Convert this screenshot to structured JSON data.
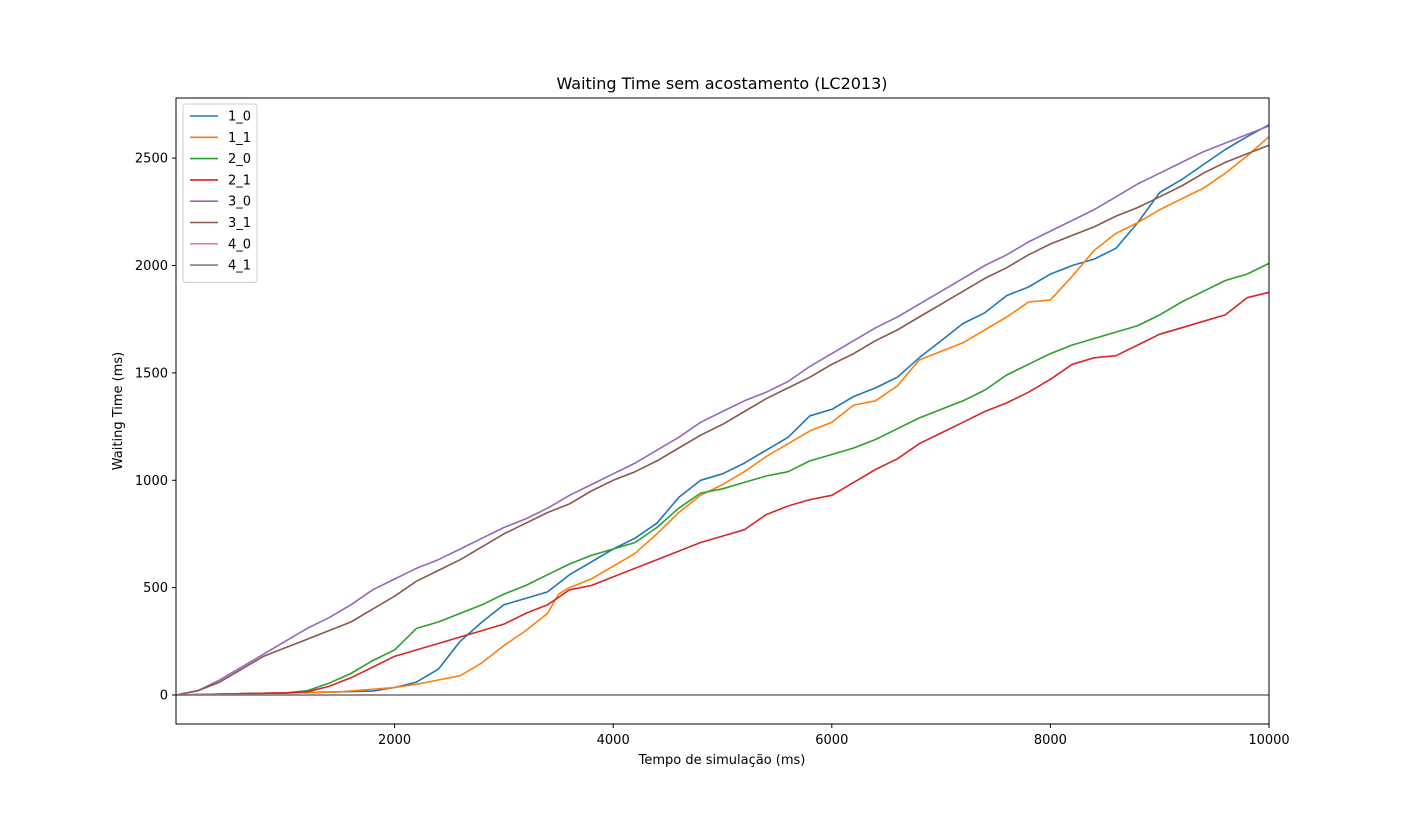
{
  "chart_data": {
    "type": "line",
    "title": "Waiting Time sem acostamento (LC2013)",
    "xlabel": "Tempo de simulação (ms)",
    "ylabel": "Waiting Time (ms)",
    "xlim": [
      0,
      10000
    ],
    "ylim": [
      -135,
      2780
    ],
    "xticks": [
      2000,
      4000,
      6000,
      8000,
      10000
    ],
    "yticks": [
      0,
      500,
      1000,
      1500,
      2000,
      2500
    ],
    "grid": false,
    "legend_position": "upper-left",
    "series": [
      {
        "name": "1_0",
        "color": "#1f77b4",
        "points": [
          [
            0,
            0
          ],
          [
            500,
            5
          ],
          [
            1000,
            10
          ],
          [
            1500,
            15
          ],
          [
            1800,
            18
          ],
          [
            2000,
            35
          ],
          [
            2200,
            60
          ],
          [
            2400,
            120
          ],
          [
            2600,
            250
          ],
          [
            2800,
            340
          ],
          [
            3000,
            420
          ],
          [
            3200,
            450
          ],
          [
            3400,
            480
          ],
          [
            3600,
            560
          ],
          [
            3800,
            620
          ],
          [
            4000,
            680
          ],
          [
            4200,
            730
          ],
          [
            4400,
            800
          ],
          [
            4600,
            920
          ],
          [
            4800,
            1000
          ],
          [
            5000,
            1030
          ],
          [
            5200,
            1080
          ],
          [
            5400,
            1140
          ],
          [
            5600,
            1200
          ],
          [
            5800,
            1300
          ],
          [
            6000,
            1330
          ],
          [
            6200,
            1390
          ],
          [
            6400,
            1430
          ],
          [
            6600,
            1480
          ],
          [
            6800,
            1570
          ],
          [
            7000,
            1650
          ],
          [
            7200,
            1730
          ],
          [
            7400,
            1780
          ],
          [
            7600,
            1860
          ],
          [
            7800,
            1900
          ],
          [
            8000,
            1960
          ],
          [
            8200,
            2000
          ],
          [
            8400,
            2030
          ],
          [
            8600,
            2080
          ],
          [
            8800,
            2200
          ],
          [
            9000,
            2340
          ],
          [
            9200,
            2400
          ],
          [
            9400,
            2470
          ],
          [
            9600,
            2540
          ],
          [
            9800,
            2600
          ],
          [
            10000,
            2655
          ]
        ]
      },
      {
        "name": "1_1",
        "color": "#ff7f0e",
        "points": [
          [
            0,
            0
          ],
          [
            500,
            5
          ],
          [
            1000,
            10
          ],
          [
            1500,
            15
          ],
          [
            2000,
            35
          ],
          [
            2200,
            50
          ],
          [
            2400,
            70
          ],
          [
            2600,
            90
          ],
          [
            2800,
            150
          ],
          [
            3000,
            230
          ],
          [
            3200,
            300
          ],
          [
            3400,
            380
          ],
          [
            3500,
            470
          ],
          [
            3600,
            500
          ],
          [
            3800,
            540
          ],
          [
            4000,
            600
          ],
          [
            4200,
            660
          ],
          [
            4400,
            750
          ],
          [
            4600,
            850
          ],
          [
            4800,
            930
          ],
          [
            5000,
            980
          ],
          [
            5200,
            1040
          ],
          [
            5400,
            1110
          ],
          [
            5600,
            1170
          ],
          [
            5800,
            1230
          ],
          [
            6000,
            1270
          ],
          [
            6200,
            1350
          ],
          [
            6400,
            1370
          ],
          [
            6600,
            1440
          ],
          [
            6800,
            1560
          ],
          [
            7000,
            1600
          ],
          [
            7200,
            1640
          ],
          [
            7400,
            1700
          ],
          [
            7600,
            1760
          ],
          [
            7800,
            1830
          ],
          [
            8000,
            1840
          ],
          [
            8200,
            1950
          ],
          [
            8400,
            2070
          ],
          [
            8600,
            2150
          ],
          [
            8800,
            2200
          ],
          [
            9000,
            2260
          ],
          [
            9200,
            2310
          ],
          [
            9400,
            2360
          ],
          [
            9600,
            2430
          ],
          [
            9800,
            2510
          ],
          [
            10000,
            2600
          ]
        ]
      },
      {
        "name": "2_0",
        "color": "#2ca02c",
        "points": [
          [
            0,
            0
          ],
          [
            500,
            5
          ],
          [
            1000,
            10
          ],
          [
            1200,
            20
          ],
          [
            1400,
            55
          ],
          [
            1600,
            100
          ],
          [
            1800,
            160
          ],
          [
            2000,
            210
          ],
          [
            2200,
            310
          ],
          [
            2400,
            340
          ],
          [
            2600,
            380
          ],
          [
            2800,
            420
          ],
          [
            3000,
            470
          ],
          [
            3200,
            510
          ],
          [
            3400,
            560
          ],
          [
            3600,
            610
          ],
          [
            3800,
            650
          ],
          [
            4000,
            680
          ],
          [
            4200,
            710
          ],
          [
            4400,
            780
          ],
          [
            4600,
            870
          ],
          [
            4800,
            940
          ],
          [
            5000,
            960
          ],
          [
            5200,
            990
          ],
          [
            5400,
            1020
          ],
          [
            5600,
            1040
          ],
          [
            5800,
            1090
          ],
          [
            6000,
            1120
          ],
          [
            6200,
            1150
          ],
          [
            6400,
            1190
          ],
          [
            6600,
            1240
          ],
          [
            6800,
            1290
          ],
          [
            7000,
            1330
          ],
          [
            7200,
            1370
          ],
          [
            7400,
            1420
          ],
          [
            7600,
            1490
          ],
          [
            7800,
            1540
          ],
          [
            8000,
            1590
          ],
          [
            8200,
            1630
          ],
          [
            8400,
            1660
          ],
          [
            8600,
            1690
          ],
          [
            8800,
            1720
          ],
          [
            9000,
            1770
          ],
          [
            9200,
            1830
          ],
          [
            9400,
            1880
          ],
          [
            9600,
            1930
          ],
          [
            9800,
            1960
          ],
          [
            10000,
            2010
          ]
        ]
      },
      {
        "name": "2_1",
        "color": "#d62728",
        "points": [
          [
            0,
            0
          ],
          [
            500,
            5
          ],
          [
            1000,
            10
          ],
          [
            1200,
            15
          ],
          [
            1400,
            40
          ],
          [
            1600,
            80
          ],
          [
            1800,
            130
          ],
          [
            2000,
            180
          ],
          [
            2200,
            210
          ],
          [
            2400,
            240
          ],
          [
            2600,
            270
          ],
          [
            2800,
            300
          ],
          [
            3000,
            330
          ],
          [
            3200,
            380
          ],
          [
            3400,
            420
          ],
          [
            3600,
            490
          ],
          [
            3800,
            510
          ],
          [
            4000,
            550
          ],
          [
            4200,
            590
          ],
          [
            4400,
            630
          ],
          [
            4600,
            670
          ],
          [
            4800,
            710
          ],
          [
            5000,
            740
          ],
          [
            5200,
            770
          ],
          [
            5400,
            840
          ],
          [
            5600,
            880
          ],
          [
            5800,
            910
          ],
          [
            6000,
            930
          ],
          [
            6200,
            990
          ],
          [
            6400,
            1050
          ],
          [
            6600,
            1100
          ],
          [
            6800,
            1170
          ],
          [
            7000,
            1220
          ],
          [
            7200,
            1270
          ],
          [
            7400,
            1320
          ],
          [
            7600,
            1360
          ],
          [
            7800,
            1410
          ],
          [
            8000,
            1470
          ],
          [
            8200,
            1540
          ],
          [
            8400,
            1570
          ],
          [
            8600,
            1580
          ],
          [
            8800,
            1630
          ],
          [
            9000,
            1680
          ],
          [
            9200,
            1710
          ],
          [
            9400,
            1740
          ],
          [
            9600,
            1770
          ],
          [
            9800,
            1850
          ],
          [
            10000,
            1875
          ]
        ]
      },
      {
        "name": "3_0",
        "color": "#9467bd",
        "points": [
          [
            0,
            0
          ],
          [
            200,
            20
          ],
          [
            400,
            70
          ],
          [
            600,
            130
          ],
          [
            800,
            190
          ],
          [
            1000,
            250
          ],
          [
            1200,
            310
          ],
          [
            1400,
            360
          ],
          [
            1600,
            420
          ],
          [
            1800,
            490
          ],
          [
            2000,
            540
          ],
          [
            2200,
            590
          ],
          [
            2400,
            630
          ],
          [
            2600,
            680
          ],
          [
            2800,
            730
          ],
          [
            3000,
            780
          ],
          [
            3200,
            820
          ],
          [
            3400,
            870
          ],
          [
            3600,
            930
          ],
          [
            3800,
            980
          ],
          [
            4000,
            1030
          ],
          [
            4200,
            1080
          ],
          [
            4400,
            1140
          ],
          [
            4600,
            1200
          ],
          [
            4800,
            1270
          ],
          [
            5000,
            1320
          ],
          [
            5200,
            1370
          ],
          [
            5400,
            1410
          ],
          [
            5600,
            1460
          ],
          [
            5800,
            1530
          ],
          [
            6000,
            1590
          ],
          [
            6200,
            1650
          ],
          [
            6400,
            1710
          ],
          [
            6600,
            1760
          ],
          [
            6800,
            1820
          ],
          [
            7000,
            1880
          ],
          [
            7200,
            1940
          ],
          [
            7400,
            2000
          ],
          [
            7600,
            2050
          ],
          [
            7800,
            2110
          ],
          [
            8000,
            2160
          ],
          [
            8200,
            2210
          ],
          [
            8400,
            2260
          ],
          [
            8600,
            2320
          ],
          [
            8800,
            2380
          ],
          [
            9000,
            2430
          ],
          [
            9200,
            2480
          ],
          [
            9400,
            2530
          ],
          [
            9600,
            2570
          ],
          [
            9800,
            2610
          ],
          [
            10000,
            2650
          ]
        ]
      },
      {
        "name": "3_1",
        "color": "#8c564b",
        "points": [
          [
            0,
            0
          ],
          [
            200,
            20
          ],
          [
            400,
            60
          ],
          [
            600,
            120
          ],
          [
            800,
            180
          ],
          [
            1000,
            220
          ],
          [
            1200,
            260
          ],
          [
            1400,
            300
          ],
          [
            1600,
            340
          ],
          [
            1800,
            400
          ],
          [
            2000,
            460
          ],
          [
            2200,
            530
          ],
          [
            2400,
            580
          ],
          [
            2600,
            630
          ],
          [
            2800,
            690
          ],
          [
            3000,
            750
          ],
          [
            3200,
            800
          ],
          [
            3400,
            850
          ],
          [
            3600,
            890
          ],
          [
            3800,
            950
          ],
          [
            4000,
            1000
          ],
          [
            4200,
            1040
          ],
          [
            4400,
            1090
          ],
          [
            4600,
            1150
          ],
          [
            4800,
            1210
          ],
          [
            5000,
            1260
          ],
          [
            5200,
            1320
          ],
          [
            5400,
            1380
          ],
          [
            5600,
            1430
          ],
          [
            5800,
            1480
          ],
          [
            6000,
            1540
          ],
          [
            6200,
            1590
          ],
          [
            6400,
            1650
          ],
          [
            6600,
            1700
          ],
          [
            6800,
            1760
          ],
          [
            7000,
            1820
          ],
          [
            7200,
            1880
          ],
          [
            7400,
            1940
          ],
          [
            7600,
            1990
          ],
          [
            7800,
            2050
          ],
          [
            8000,
            2100
          ],
          [
            8200,
            2140
          ],
          [
            8400,
            2180
          ],
          [
            8600,
            2230
          ],
          [
            8800,
            2270
          ],
          [
            9000,
            2320
          ],
          [
            9200,
            2370
          ],
          [
            9400,
            2430
          ],
          [
            9600,
            2480
          ],
          [
            9800,
            2520
          ],
          [
            10000,
            2560
          ]
        ]
      },
      {
        "name": "4_0",
        "color": "#e377c2",
        "points": [
          [
            0,
            0
          ],
          [
            10000,
            0
          ]
        ]
      },
      {
        "name": "4_1",
        "color": "#7f7f7f",
        "points": [
          [
            0,
            0
          ],
          [
            10000,
            0
          ]
        ]
      }
    ]
  }
}
